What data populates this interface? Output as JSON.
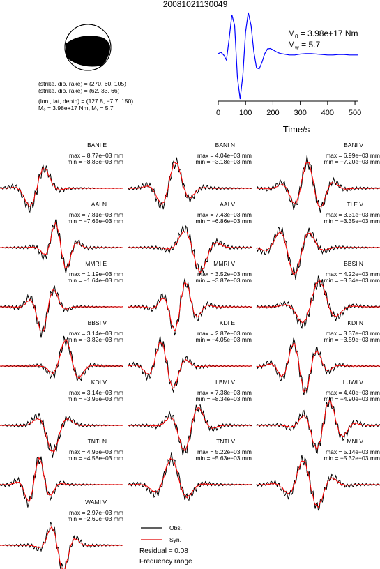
{
  "event_id": "20081021130049",
  "mechanism": {
    "line1": "(strike, dip, rake) = (270, 60, 105)",
    "line2": "(strike, dip, rake) = (62, 33, 66)",
    "line3": "(lon., lat, depth) = (127.8, −7.7, 150)",
    "line4": "M₀ = 3.98e+17 Nm, Mᵥ = 5.7",
    "beach_colors": {
      "compressional": "#000000",
      "dilatational": "#ffffff"
    }
  },
  "stf": {
    "m0_label": "M",
    "m0_sub": "0",
    "m0_value": " = 3.98e+17 Nm",
    "mw_label": "M",
    "mw_sub": "w",
    "mw_value": " = 5.7",
    "xlabel": "Time/s",
    "ticks": [
      "0",
      "100",
      "200",
      "300",
      "400",
      "500"
    ],
    "color": "#0000ff"
  },
  "legend": {
    "obs": "Obs.",
    "syn": "Syn.",
    "residual": "Residual = 0.08",
    "freq": "Frequency range",
    "obs_color": "#000000",
    "syn_color": "#ff0000"
  },
  "chart_data": {
    "type": "line",
    "title": "20081021130049",
    "source_time_function": {
      "xlabel": "Time/s",
      "xlim": [
        0,
        510
      ],
      "x": [
        0,
        10,
        20,
        30,
        40,
        50,
        60,
        70,
        80,
        90,
        100,
        110,
        120,
        130,
        140,
        150,
        160,
        170,
        180,
        190,
        200,
        210,
        220,
        230,
        240,
        250,
        260,
        270,
        280,
        290,
        300,
        320,
        340,
        360,
        380,
        400,
        420,
        440,
        460,
        480,
        500,
        510
      ],
      "y": [
        0.05,
        0.08,
        0.02,
        -0.1,
        0.4,
        0.95,
        0.7,
        -0.5,
        -1.0,
        -0.45,
        0.55,
        1.0,
        0.7,
        0.1,
        -0.28,
        -0.3,
        -0.15,
        0.05,
        0.16,
        0.17,
        0.14,
        0.1,
        0.07,
        0.05,
        0.04,
        0.03,
        0.02,
        0.02,
        0.02,
        0.03,
        0.04,
        0.05,
        0.05,
        0.04,
        0.03,
        0.02,
        0.02,
        0.03,
        0.03,
        0.02,
        0.02,
        0.02
      ]
    },
    "series": [
      {
        "name": "BANI E",
        "max": "max = 8.77e−03 mm",
        "min": "min = −8.83e−03 mm"
      },
      {
        "name": "BANI N",
        "max": "max = 4.04e−03 mm",
        "min": "min = −3.18e−03 mm"
      },
      {
        "name": "BANI V",
        "max": "max = 6.99e−03 mm",
        "min": "min = −7.20e−03 mm"
      },
      {
        "name": "AAI N",
        "max": "max = 7.81e−03 mm",
        "min": "min = −7.65e−03 mm"
      },
      {
        "name": "AAI V",
        "max": "max = 7.43e−03 mm",
        "min": "min = −6.86e−03 mm"
      },
      {
        "name": "TLE V",
        "max": "max = 3.31e−03 mm",
        "min": "min = −3.35e−03 mm"
      },
      {
        "name": "MMRI E",
        "max": "max = 1.19e−03 mm",
        "min": "min = −1.64e−03 mm"
      },
      {
        "name": "MMRI V",
        "max": "max = 3.52e−03 mm",
        "min": "min = −3.87e−03 mm"
      },
      {
        "name": "BBSI N",
        "max": "max = 4.22e−03 mm",
        "min": "min = −3.34e−03 mm"
      },
      {
        "name": "BBSI V",
        "max": "max = 3.14e−03 mm",
        "min": "min = −3.82e−03 mm"
      },
      {
        "name": "KDI E",
        "max": "max = 2.87e−03 mm",
        "min": "min = −4.05e−03 mm"
      },
      {
        "name": "KDI N",
        "max": "max = 3.37e−03 mm",
        "min": "min = −3.59e−03 mm"
      },
      {
        "name": "KDI V",
        "max": "max = 3.14e−03 mm",
        "min": "min = −3.95e−03 mm"
      },
      {
        "name": "LBMI V",
        "max": "max = 7.38e−03 mm",
        "min": "min = −8.34e−03 mm"
      },
      {
        "name": "LUWI V",
        "max": "max = 4.40e−03 mm",
        "min": "min = −4.90e−03 mm"
      },
      {
        "name": "TNTI N",
        "max": "max = 4.93e−03 mm",
        "min": "min = −4.58e−03 mm"
      },
      {
        "name": "TNTI V",
        "max": "max = 5.22e−03 mm",
        "min": "min = −5.63e−03 mm"
      },
      {
        "name": "MNI V",
        "max": "max = 5.14e−03 mm",
        "min": "min = −5.32e−03 mm"
      },
      {
        "name": "WAMI V",
        "max": "max = 2.97e−03 mm",
        "min": "min = −2.69e−03 mm"
      }
    ]
  }
}
